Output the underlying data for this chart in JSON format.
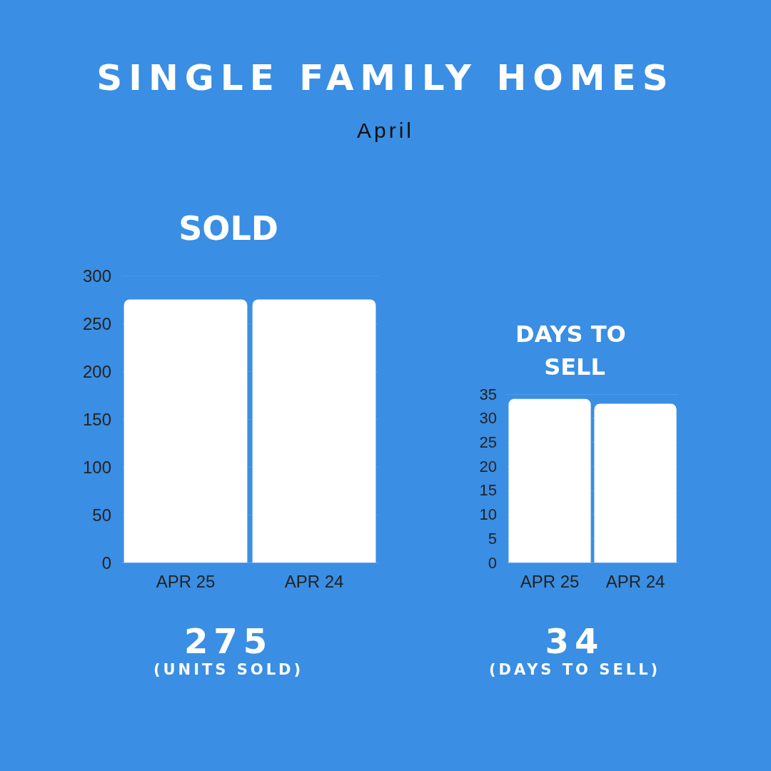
{
  "chart_data": [
    {
      "type": "other",
      "title": "SINGLE FAMILY HOMES",
      "subtitle": "April"
    },
    {
      "type": "bar",
      "title": "SOLD",
      "categories": [
        "APR 25",
        "APR 24"
      ],
      "values": [
        275,
        275
      ],
      "color": "#ffffff",
      "ylim": [
        0,
        300
      ],
      "yticks": [
        0,
        50,
        100,
        150,
        200,
        250,
        300
      ],
      "grid": "y",
      "annotations": [
        "275",
        "(UNITS SOLD)"
      ]
    },
    {
      "type": "bar",
      "title": "DAYS TO SELL",
      "categories": [
        "APR 25",
        "APR 24"
      ],
      "values": [
        34,
        33
      ],
      "color": "#ffffff",
      "ylim": [
        0,
        35
      ],
      "yticks": [
        0,
        5,
        10,
        15,
        20,
        25,
        30,
        35
      ],
      "grid": "y",
      "annotations": [
        "34",
        "(DAYS TO SELL)"
      ]
    }
  ]
}
